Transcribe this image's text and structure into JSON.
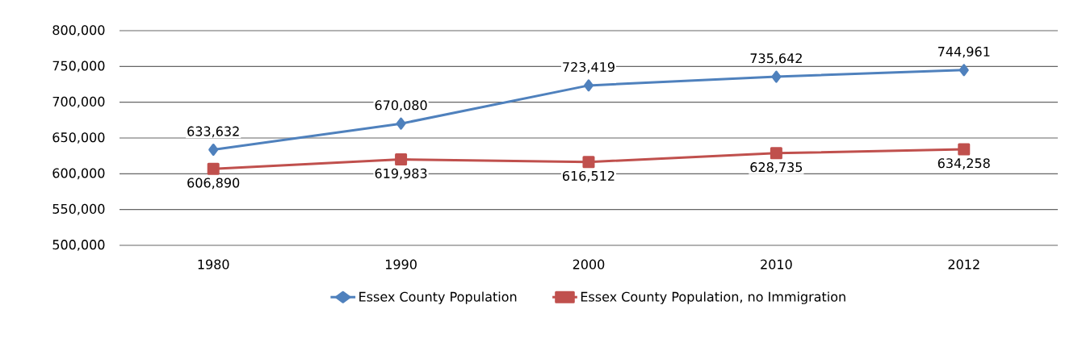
{
  "chart_data": {
    "type": "line",
    "categories": [
      "1980",
      "1990",
      "2000",
      "2010",
      "2012"
    ],
    "series": [
      {
        "name": "Essex County Population",
        "color": "#4f81bd",
        "marker": "diamond",
        "values": [
          633632,
          670080,
          723419,
          735642,
          744961
        ],
        "value_labels": [
          "633,632",
          "670,080",
          "723,419",
          "735,642",
          "744,961"
        ]
      },
      {
        "name": "Essex County Population, no Immigration",
        "color": "#c0504d",
        "marker": "square",
        "values": [
          606890,
          619983,
          616512,
          628735,
          634258
        ],
        "value_labels": [
          "606,890",
          "619,983",
          "616,512",
          "628,735",
          "634,258"
        ]
      }
    ],
    "ylim": [
      500000,
      800000
    ],
    "yticks": [
      {
        "value": 500000,
        "label": "500,000"
      },
      {
        "value": 550000,
        "label": "550,000"
      },
      {
        "value": 600000,
        "label": "600,000"
      },
      {
        "value": 650000,
        "label": "650,000"
      },
      {
        "value": 700000,
        "label": "700,000"
      },
      {
        "value": 750000,
        "label": "750,000"
      },
      {
        "value": 800000,
        "label": "800,000"
      }
    ],
    "grid": "y",
    "legend": "bottom",
    "line_style": "solid"
  }
}
